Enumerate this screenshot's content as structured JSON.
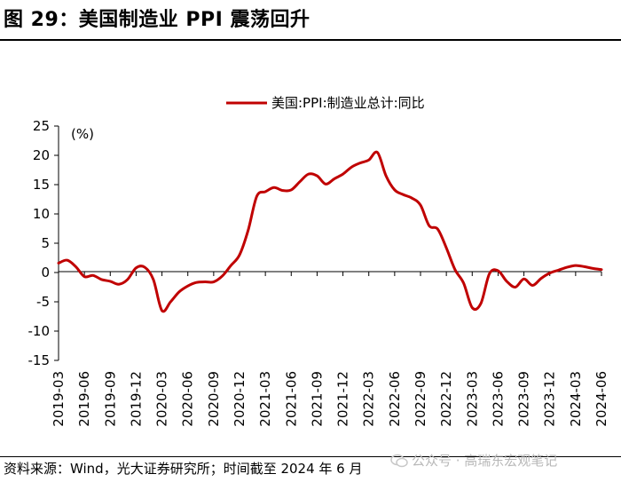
{
  "figure": {
    "title": "图 29：美国制造业 PPI 震荡回升",
    "source": "资料来源：Wind，光大证券研究所；时间截至 2024 年 6 月",
    "watermark": "公众号 · 高瑞东宏观笔记"
  },
  "colors": {
    "series": "#c00000",
    "axis": "#000000"
  },
  "chart_data": {
    "type": "line",
    "title": "",
    "ylabel": "(%)",
    "xlabel": "",
    "ylim": [
      -15,
      25
    ],
    "yticks": [
      25,
      20,
      15,
      10,
      5,
      0,
      -5,
      -10,
      -15
    ],
    "xticks": [
      "2019-03",
      "2019-06",
      "2019-09",
      "2019-12",
      "2020-03",
      "2020-06",
      "2020-09",
      "2020-12",
      "2021-03",
      "2021-06",
      "2021-09",
      "2021-12",
      "2022-03",
      "2022-06",
      "2022-09",
      "2022-12",
      "2023-03",
      "2023-06",
      "2023-09",
      "2023-12",
      "2024-03",
      "2024-06"
    ],
    "grid": false,
    "legend": {
      "position": "top-center"
    },
    "series": [
      {
        "name": "美国:PPI:制造业总计:同比",
        "x": [
          "2019-03",
          "2019-04",
          "2019-05",
          "2019-06",
          "2019-07",
          "2019-08",
          "2019-09",
          "2019-10",
          "2019-11",
          "2019-12",
          "2020-01",
          "2020-02",
          "2020-03",
          "2020-04",
          "2020-05",
          "2020-06",
          "2020-07",
          "2020-08",
          "2020-09",
          "2020-10",
          "2020-11",
          "2020-12",
          "2021-01",
          "2021-02",
          "2021-03",
          "2021-04",
          "2021-05",
          "2021-06",
          "2021-07",
          "2021-08",
          "2021-09",
          "2021-10",
          "2021-11",
          "2021-12",
          "2022-01",
          "2022-02",
          "2022-03",
          "2022-04",
          "2022-05",
          "2022-06",
          "2022-07",
          "2022-08",
          "2022-09",
          "2022-10",
          "2022-11",
          "2022-12",
          "2023-01",
          "2023-02",
          "2023-03",
          "2023-04",
          "2023-05",
          "2023-06",
          "2023-07",
          "2023-08",
          "2023-09",
          "2023-10",
          "2023-11",
          "2023-12",
          "2024-01",
          "2024-02",
          "2024-03",
          "2024-04",
          "2024-05",
          "2024-06"
        ],
        "values": [
          1.6,
          2.1,
          1.0,
          -0.7,
          -0.5,
          -1.2,
          -1.5,
          -2.0,
          -1.2,
          0.8,
          0.9,
          -1.2,
          -6.5,
          -5.0,
          -3.3,
          -2.3,
          -1.7,
          -1.6,
          -1.6,
          -0.6,
          1.2,
          3.0,
          7.2,
          13.0,
          13.8,
          14.5,
          14.0,
          14.1,
          15.5,
          16.8,
          16.5,
          15.1,
          16.0,
          16.8,
          18.0,
          18.7,
          19.2,
          20.5,
          16.5,
          14.1,
          13.3,
          12.7,
          11.5,
          8.0,
          7.4,
          4.2,
          0.5,
          -1.8,
          -6.0,
          -5.3,
          -0.2,
          0.3,
          -1.5,
          -2.5,
          -1.1,
          -2.2,
          -1.0,
          -0.1,
          0.4,
          0.9,
          1.2,
          1.0,
          0.7,
          0.5
        ]
      }
    ]
  }
}
